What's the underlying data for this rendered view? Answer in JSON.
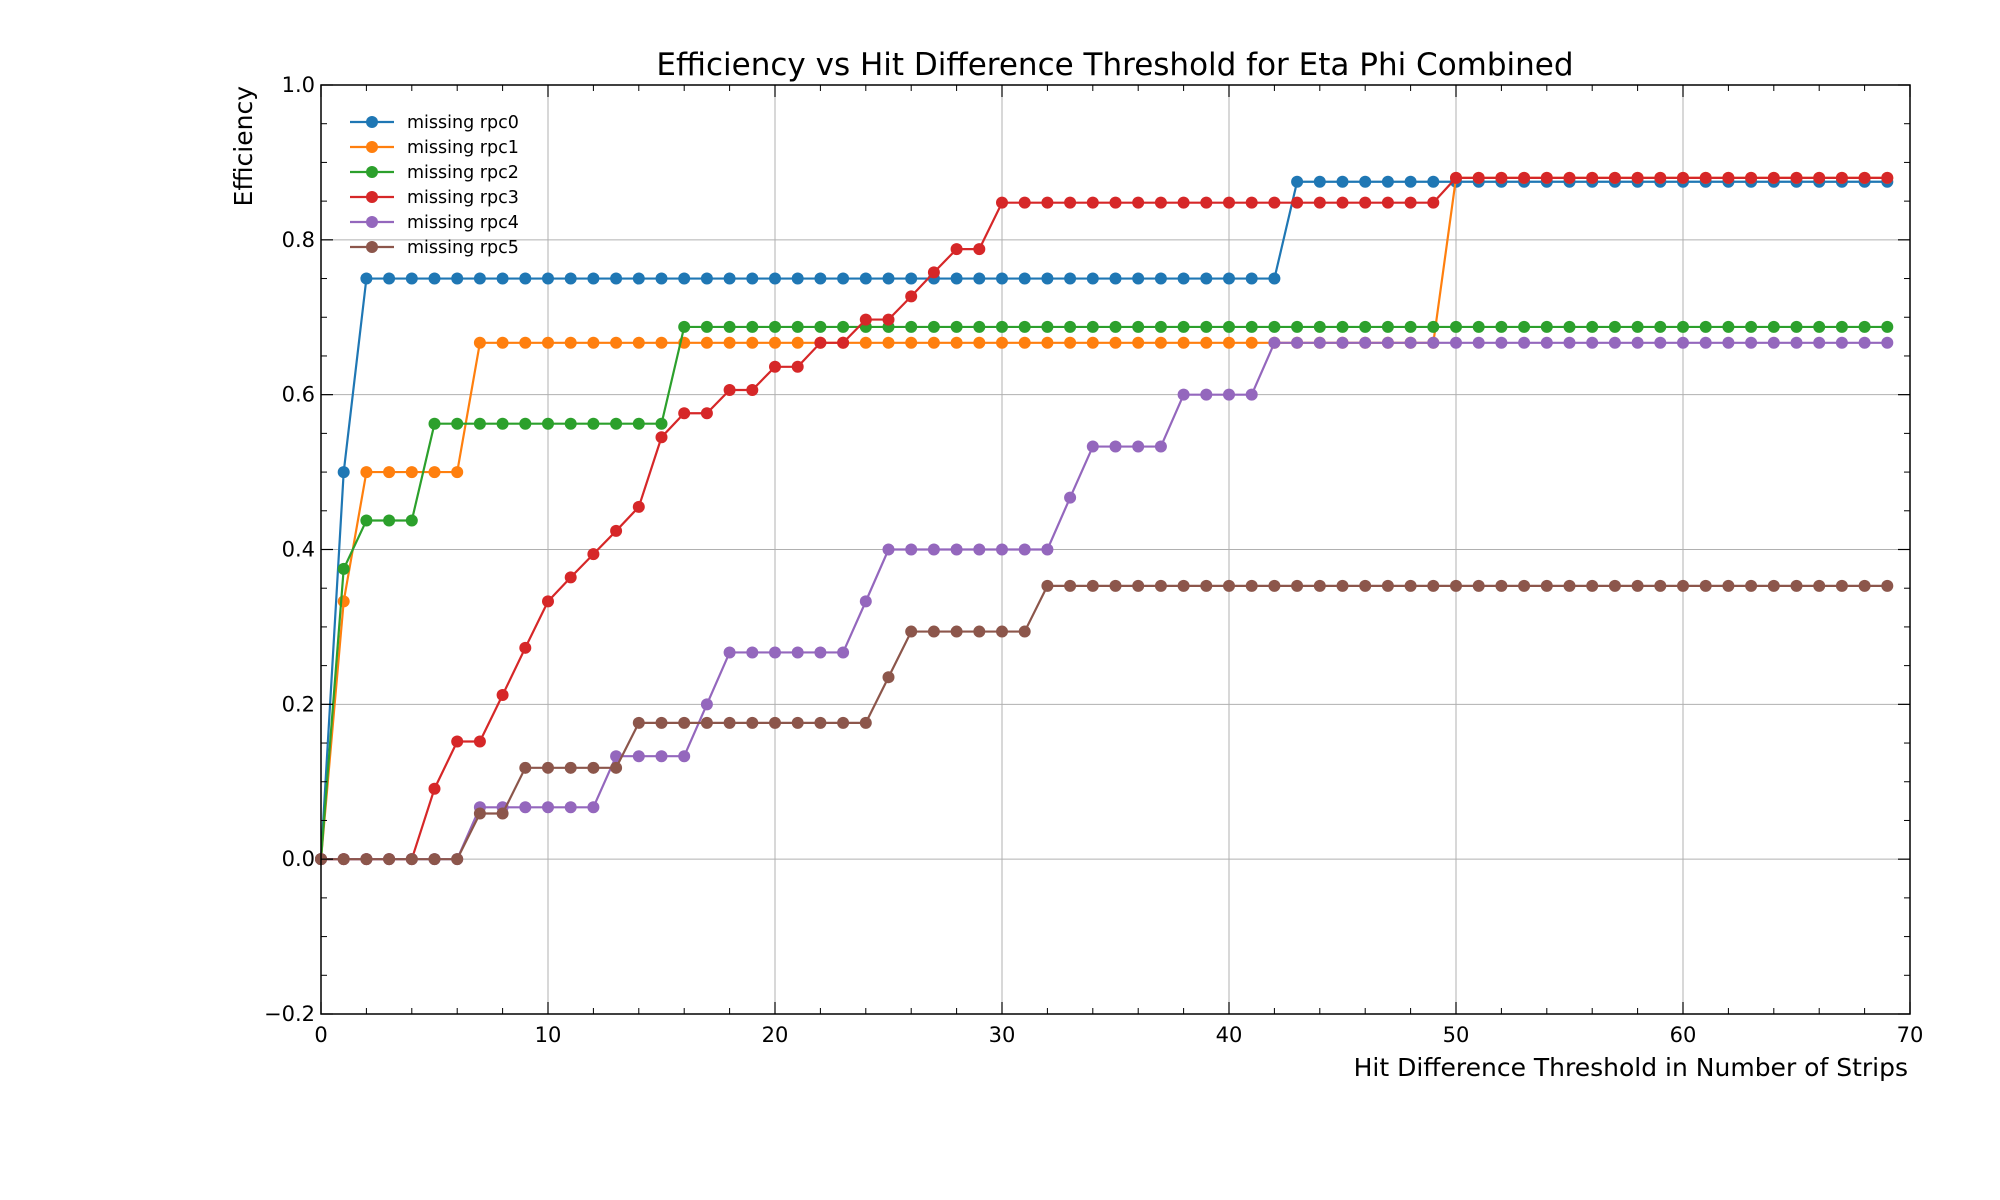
{
  "chart_data": {
    "type": "line",
    "title": "Efficiency vs Hit Difference Threshold for Eta Phi Combined",
    "xlabel": "Hit Difference Threshold in Number of Strips",
    "ylabel": "Efficiency",
    "xlim": [
      0,
      70
    ],
    "ylim": [
      -0.2,
      1.0
    ],
    "x_ticks": [
      "0",
      "10",
      "20",
      "30",
      "40",
      "50",
      "60",
      "70"
    ],
    "y_ticks": [
      "−0.2",
      "0.0",
      "0.2",
      "0.4",
      "0.6",
      "0.8",
      "1.0"
    ],
    "x_tick_values": [
      0,
      10,
      20,
      30,
      40,
      50,
      60,
      70
    ],
    "y_tick_values": [
      -0.2,
      0.0,
      0.2,
      0.4,
      0.6,
      0.8,
      1.0
    ],
    "grid": true,
    "legend_position": "top-left",
    "x_start": 0,
    "x_end": 69,
    "series": [
      {
        "name": "missing rpc0",
        "color": "#1f77b4",
        "steps": [
          [
            0,
            0.0
          ],
          [
            1,
            0.5
          ],
          [
            2,
            0.75
          ],
          [
            43,
            0.875
          ]
        ]
      },
      {
        "name": "missing rpc1",
        "color": "#ff7f0e",
        "steps": [
          [
            0,
            0.0
          ],
          [
            1,
            0.333
          ],
          [
            2,
            0.5
          ],
          [
            7,
            0.667
          ],
          [
            50,
            0.88
          ]
        ]
      },
      {
        "name": "missing rpc2",
        "color": "#2ca02c",
        "steps": [
          [
            0,
            0.0
          ],
          [
            1,
            0.375
          ],
          [
            2,
            0.4375
          ],
          [
            5,
            0.5625
          ],
          [
            16,
            0.6875
          ]
        ]
      },
      {
        "name": "missing rpc3",
        "color": "#d62728",
        "steps": [
          [
            0,
            0.0
          ],
          [
            5,
            0.091
          ],
          [
            6,
            0.152
          ],
          [
            8,
            0.212
          ],
          [
            9,
            0.273
          ],
          [
            10,
            0.333
          ],
          [
            11,
            0.364
          ],
          [
            12,
            0.394
          ],
          [
            13,
            0.424
          ],
          [
            14,
            0.455
          ],
          [
            15,
            0.545
          ],
          [
            16,
            0.576
          ],
          [
            18,
            0.606
          ],
          [
            20,
            0.636
          ],
          [
            22,
            0.667
          ],
          [
            24,
            0.697
          ],
          [
            26,
            0.727
          ],
          [
            27,
            0.758
          ],
          [
            28,
            0.788
          ],
          [
            30,
            0.848
          ],
          [
            50,
            0.88
          ]
        ]
      },
      {
        "name": "missing rpc4",
        "color": "#9467bd",
        "steps": [
          [
            0,
            0.0
          ],
          [
            7,
            0.067
          ],
          [
            13,
            0.133
          ],
          [
            17,
            0.2
          ],
          [
            18,
            0.267
          ],
          [
            24,
            0.333
          ],
          [
            25,
            0.4
          ],
          [
            33,
            0.467
          ],
          [
            34,
            0.533
          ],
          [
            38,
            0.6
          ],
          [
            42,
            0.667
          ]
        ]
      },
      {
        "name": "missing rpc5",
        "color": "#8c564b",
        "steps": [
          [
            0,
            0.0
          ],
          [
            7,
            0.059
          ],
          [
            9,
            0.118
          ],
          [
            14,
            0.176
          ],
          [
            25,
            0.235
          ],
          [
            26,
            0.294
          ],
          [
            32,
            0.353
          ]
        ]
      }
    ]
  }
}
